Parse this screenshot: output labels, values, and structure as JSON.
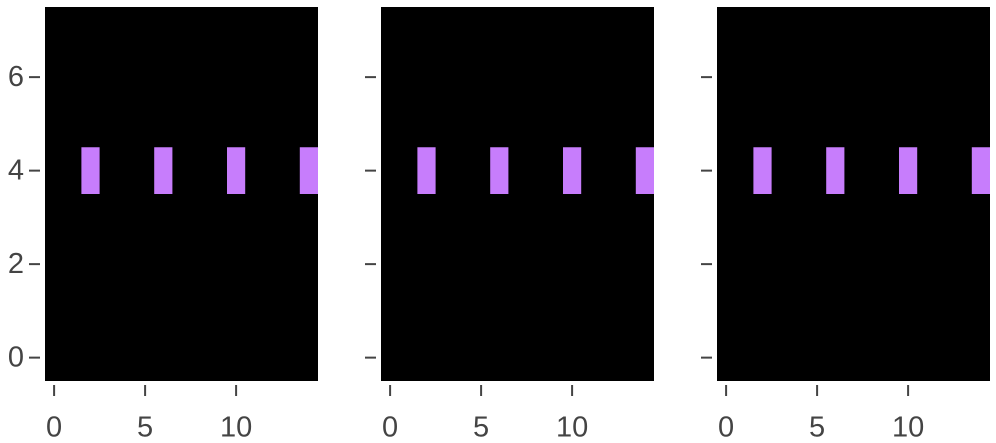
{
  "chart_data": [
    {
      "type": "image",
      "background": "#000000",
      "color": "#c77dfc",
      "x": [
        2,
        6,
        10,
        14
      ],
      "y": [
        4,
        4,
        4,
        4
      ],
      "xlim": [
        -0.5,
        14.5
      ],
      "ylim": [
        -0.5,
        7.5
      ],
      "xticks": [
        0,
        5,
        10
      ],
      "yticks": [
        0,
        2,
        4,
        6
      ],
      "ytick_labels": true
    },
    {
      "type": "image",
      "background": "#000000",
      "color": "#c77dfc",
      "x": [
        2,
        6,
        10,
        14
      ],
      "y": [
        4,
        4,
        4,
        4
      ],
      "xlim": [
        -0.5,
        14.5
      ],
      "ylim": [
        -0.5,
        7.5
      ],
      "xticks": [
        0,
        5,
        10
      ],
      "yticks": [
        0,
        2,
        4,
        6
      ],
      "ytick_labels": false
    },
    {
      "type": "image",
      "background": "#000000",
      "color": "#c77dfc",
      "x": [
        2,
        6,
        10,
        14
      ],
      "y": [
        4,
        4,
        4,
        4
      ],
      "xlim": [
        -0.5,
        14.5
      ],
      "ylim": [
        -0.5,
        7.5
      ],
      "xticks": [
        0,
        5,
        10
      ],
      "yticks": [
        0,
        2,
        4,
        6
      ],
      "ytick_labels": false
    }
  ]
}
